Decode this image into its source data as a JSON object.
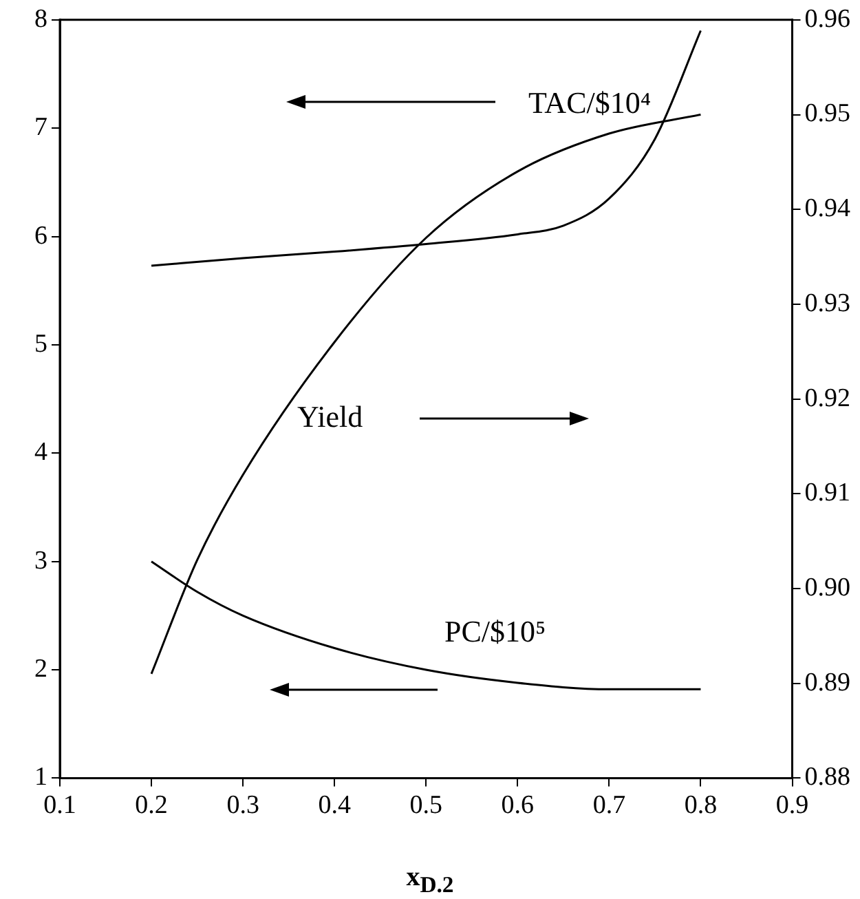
{
  "chart_data": {
    "type": "line",
    "xlabel": "x$_{D.2}$",
    "xlim": [
      0.1,
      0.9
    ],
    "xticks": [
      0.1,
      0.2,
      0.3,
      0.4,
      0.5,
      0.6,
      0.7,
      0.8,
      0.9
    ],
    "ylim": [
      1,
      8
    ],
    "yticks": [
      1,
      2,
      3,
      4,
      5,
      6,
      7,
      8
    ],
    "y2lim": [
      0.88,
      0.96
    ],
    "y2ticks": [
      0.88,
      0.89,
      {
        "value": 0.9,
        "label": "0.90"
      },
      0.91,
      0.92,
      0.93,
      0.94,
      0.95,
      0.96
    ],
    "grid": false,
    "legend": false,
    "marker": "none",
    "line_style": "solid",
    "series": [
      {
        "name": "TAC/$10⁴",
        "color": "#000000",
        "x": [
          0.2,
          0.3,
          0.4,
          0.5,
          0.6,
          0.65,
          0.7,
          0.75,
          0.8
        ],
        "values": [
          5.73,
          5.8,
          5.86,
          5.93,
          6.02,
          6.1,
          6.35,
          6.9,
          7.9
        ]
      },
      {
        "name": "Yield",
        "axis": "y2",
        "color": "#000000",
        "x": [
          0.2,
          0.25,
          0.3,
          0.4,
          0.5,
          0.6,
          0.7,
          0.8
        ],
        "values": [
          0.891,
          0.903,
          0.912,
          0.926,
          0.937,
          0.944,
          0.948,
          0.95
        ]
      },
      {
        "name": "PC/$10⁵",
        "color": "#000000",
        "x": [
          0.2,
          0.25,
          0.3,
          0.4,
          0.5,
          0.6,
          0.7,
          0.8
        ],
        "values": [
          3.0,
          2.72,
          2.5,
          2.2,
          2.0,
          1.88,
          1.82,
          1.82
        ]
      }
    ]
  }
}
